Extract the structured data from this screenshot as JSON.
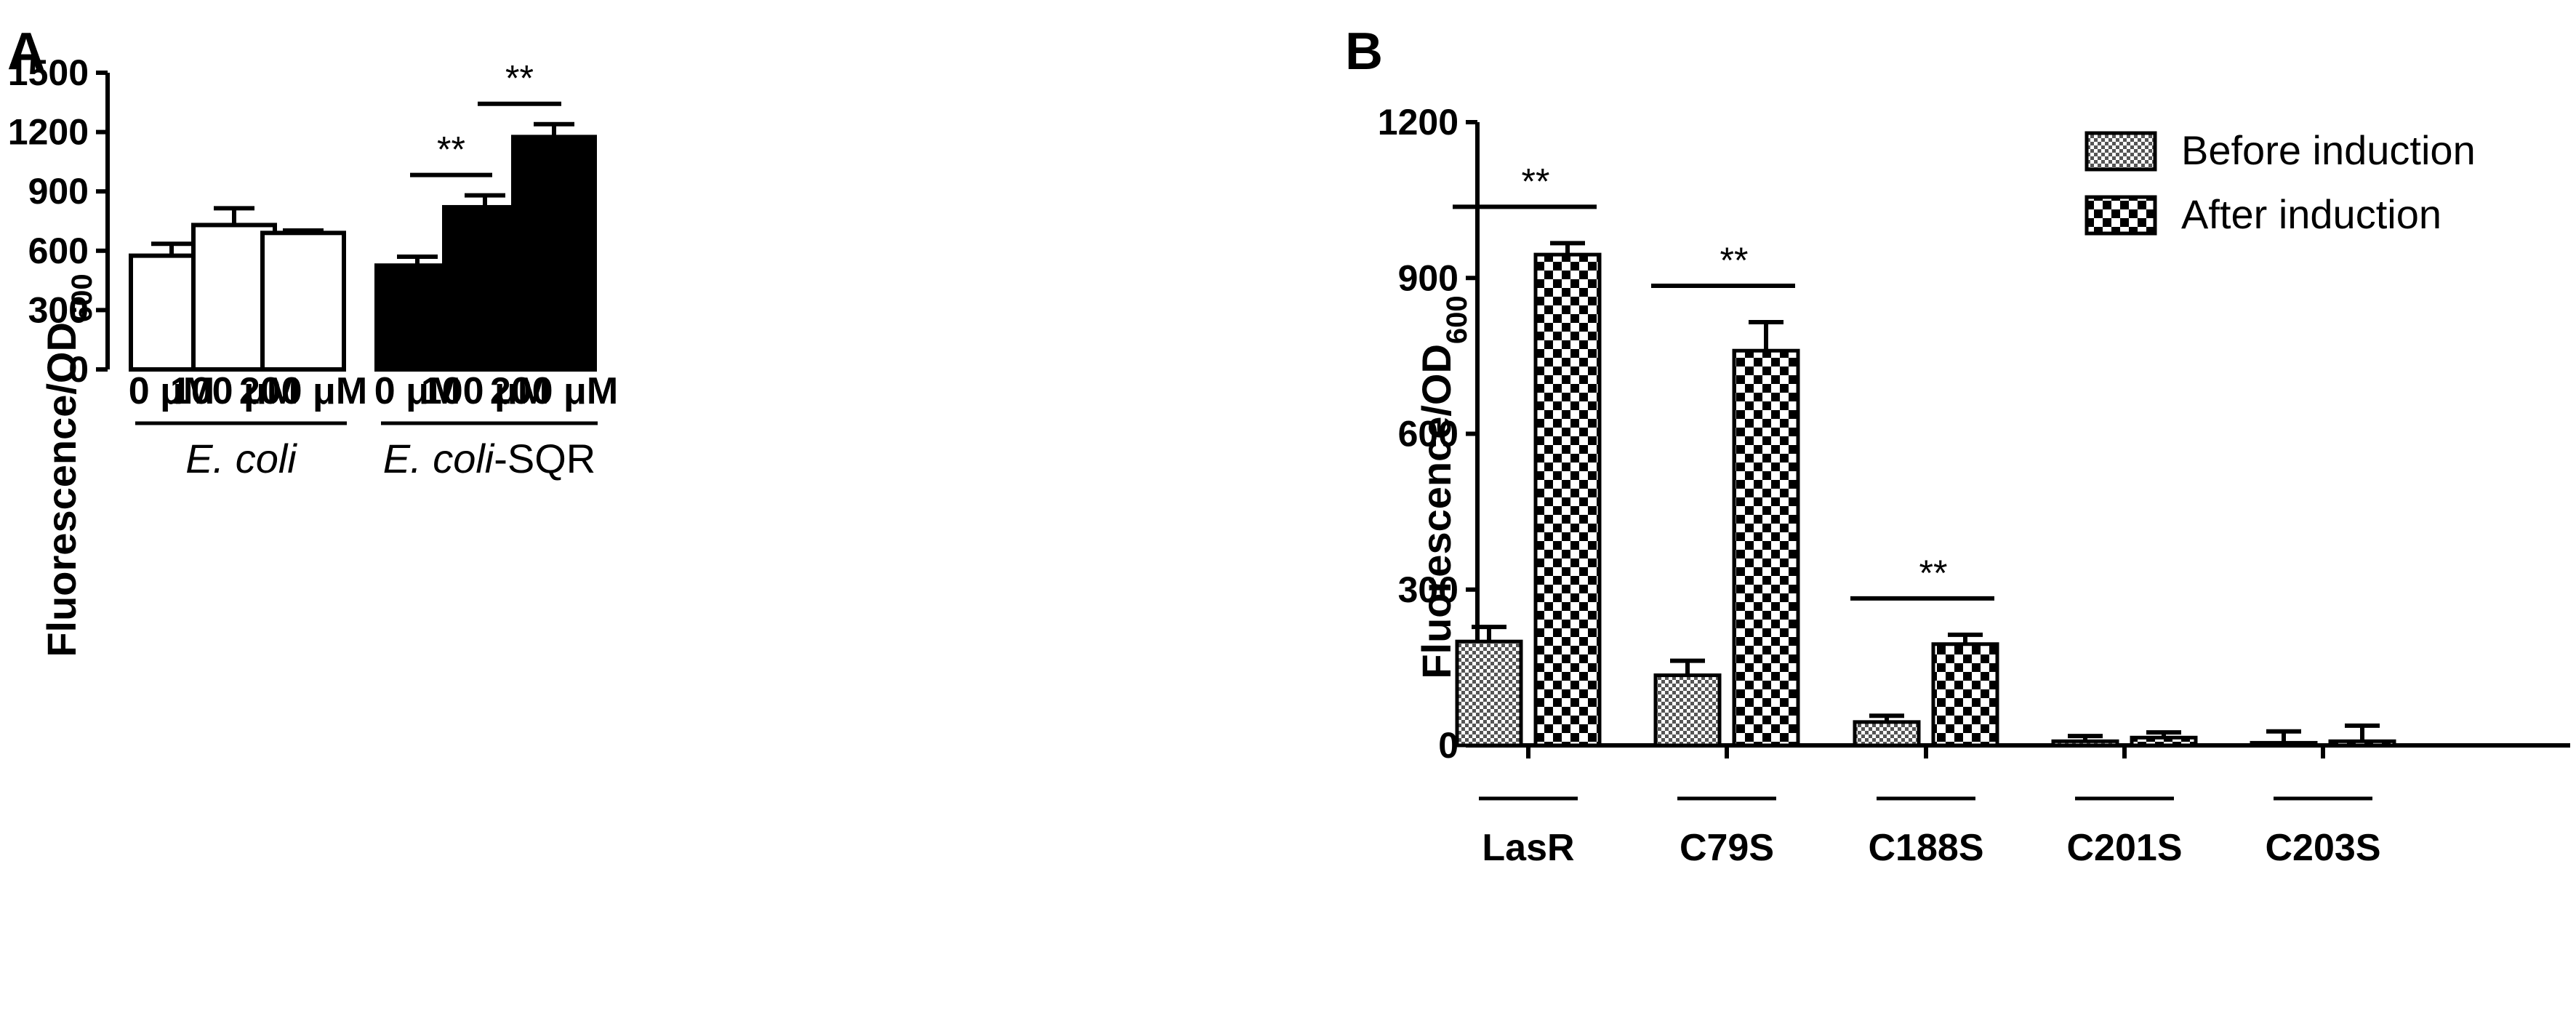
{
  "chart_data": [
    {
      "panel": "A",
      "type": "bar",
      "ylabel": "Fluorescence/OD",
      "ylabel_subscript": "600",
      "ylim": [
        0,
        1500
      ],
      "yticks": [
        "0",
        "300",
        "600",
        "900",
        "1200",
        "1500"
      ],
      "yticks_values": [
        0,
        300,
        600,
        900,
        1200,
        1500
      ],
      "categories": [
        "0 μM",
        "100 μM",
        "200 μM",
        "0 μM",
        "100 μM",
        "200 μM"
      ],
      "values": [
        575,
        730,
        690,
        525,
        820,
        1175
      ],
      "errors": [
        60,
        85,
        12,
        45,
        60,
        65
      ],
      "fills": [
        "white",
        "white",
        "white",
        "black",
        "black",
        "black"
      ],
      "groups": [
        {
          "label_italic": "E. coli",
          "label_suffix": "",
          "start": 0,
          "end": 2
        },
        {
          "label_italic": "E. coli",
          "label_suffix": "-SQR",
          "start": 3,
          "end": 5
        }
      ],
      "significance": [
        {
          "from": 3,
          "to": 4,
          "label": "**"
        },
        {
          "from": 4,
          "to": 5,
          "label": "**"
        }
      ]
    },
    {
      "panel": "B",
      "type": "bar",
      "ylabel": "Fluorescence/OD",
      "ylabel_subscript": "600",
      "ylim": [
        0,
        1200
      ],
      "yticks": [
        "0",
        "300",
        "600",
        "900",
        "1200"
      ],
      "yticks_values": [
        0,
        300,
        600,
        900,
        1200
      ],
      "categories": [
        "LasR",
        "C79S",
        "C188S",
        "C201S",
        "C203S"
      ],
      "series": [
        {
          "name": "Before induction",
          "pattern": "fine",
          "values": [
            200,
            135,
            45,
            8,
            5
          ],
          "errors": [
            28,
            28,
            12,
            10,
            22
          ]
        },
        {
          "name": "After induction",
          "pattern": "checker",
          "values": [
            945,
            760,
            195,
            15,
            8
          ],
          "errors": [
            22,
            55,
            18,
            10,
            30
          ]
        }
      ],
      "legend_position": "top-right",
      "significance": [
        {
          "category": 0,
          "label": "**"
        },
        {
          "category": 1,
          "label": "**"
        },
        {
          "category": 2,
          "label": "**"
        }
      ]
    }
  ]
}
